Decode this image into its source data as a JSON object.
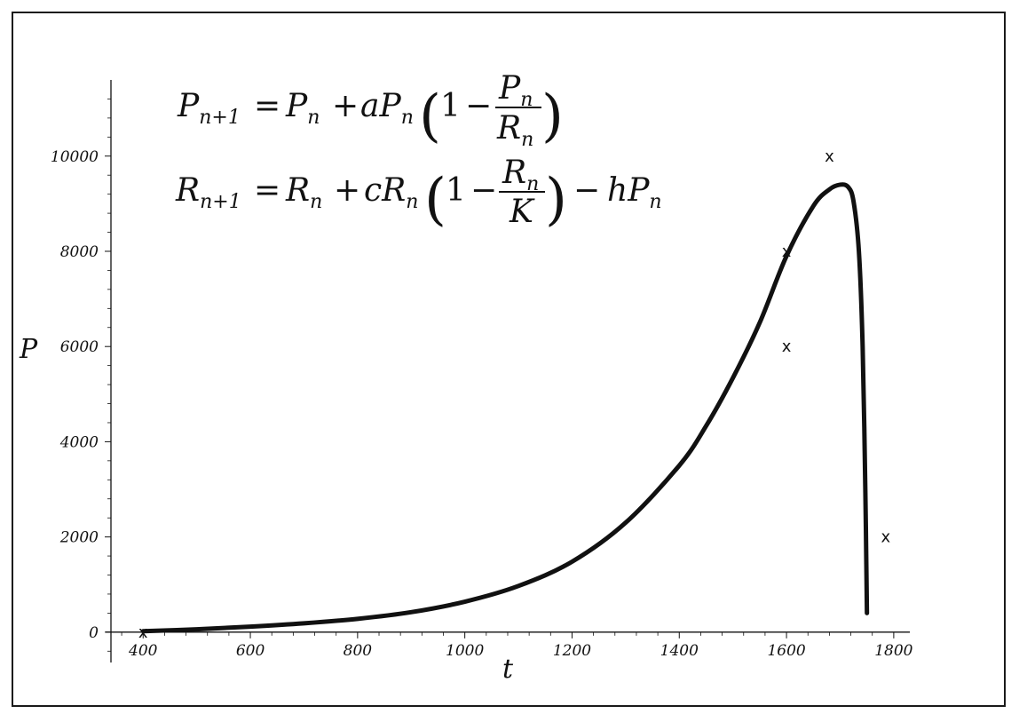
{
  "chart_data": {
    "type": "line",
    "title": "",
    "xlabel": "t",
    "ylabel": "P",
    "xlim": [
      340,
      1830
    ],
    "ylim": [
      -600,
      11600
    ],
    "xticks": [
      400,
      600,
      800,
      1000,
      1200,
      1400,
      1600,
      1800
    ],
    "xtick_labels": [
      "400",
      "600",
      "800",
      "1000",
      "1200",
      "1400",
      "1600",
      "1800"
    ],
    "yticks": [
      0,
      2000,
      4000,
      6000,
      8000,
      10000
    ],
    "ytick_labels": [
      "0",
      "2000",
      "4000",
      "6000",
      "8000",
      "10000"
    ],
    "grid": false,
    "legend": "none",
    "line_color": "#111111",
    "series": [
      {
        "x": [
          400,
          500,
          600,
          700,
          800,
          900,
          1000,
          1100,
          1200,
          1300,
          1400,
          1450,
          1500,
          1550,
          1600,
          1650,
          1680,
          1700,
          1715,
          1725,
          1735,
          1742,
          1747,
          1750
        ],
        "y": [
          20,
          60,
          115,
          185,
          280,
          420,
          640,
          970,
          1480,
          2300,
          3500,
          4330,
          5340,
          6500,
          7900,
          8950,
          9300,
          9400,
          9350,
          9050,
          8000,
          6000,
          3000,
          400
        ]
      }
    ],
    "markers": [
      {
        "x": 400,
        "y": 0,
        "label": "x"
      },
      {
        "x": 1680,
        "y": 10000,
        "label": "x"
      },
      {
        "x": 1600,
        "y": 8000,
        "label": "x"
      },
      {
        "x": 1600,
        "y": 6000,
        "label": "x"
      },
      {
        "x": 1785,
        "y": 2000,
        "label": "x"
      }
    ],
    "annotations": [
      {
        "name": "P-equation",
        "lhs": "P",
        "lhs_sub": "n+1",
        "rhs_1": "P",
        "rhs_1_sub": "n",
        "plus": "+",
        "coef": "a",
        "rhs_2": "P",
        "rhs_2_sub": "n",
        "one": "1",
        "minus": "−",
        "num": "P",
        "num_sub": "n",
        "den": "R",
        "den_sub": "n",
        "eq": "="
      },
      {
        "name": "R-equation",
        "lhs": "R",
        "lhs_sub": "n+1",
        "rhs_1": "R",
        "rhs_1_sub": "n",
        "plus": "+",
        "coef": "c",
        "rhs_2": "R",
        "rhs_2_sub": "n",
        "one": "1",
        "minus": "−",
        "num": "R",
        "num_sub": "n",
        "den": "K",
        "eq": "=",
        "tail_minus": "−",
        "tail_coef": "h",
        "tail_var": "P",
        "tail_sub": "n"
      }
    ]
  }
}
